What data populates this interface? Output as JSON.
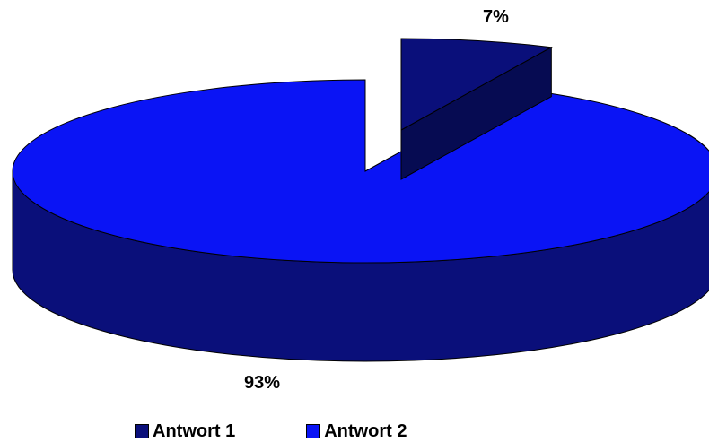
{
  "chart_data": {
    "type": "pie",
    "title": "",
    "slices": [
      {
        "name": "Antwort 1",
        "value": 7,
        "label": "7%",
        "color": "#0A0F7A"
      },
      {
        "name": "Antwort 2",
        "value": 93,
        "label": "93%",
        "color": "#0A14F5"
      }
    ],
    "legend_position": "bottom",
    "exploded_slice": "Antwort 1",
    "style": "3d"
  }
}
